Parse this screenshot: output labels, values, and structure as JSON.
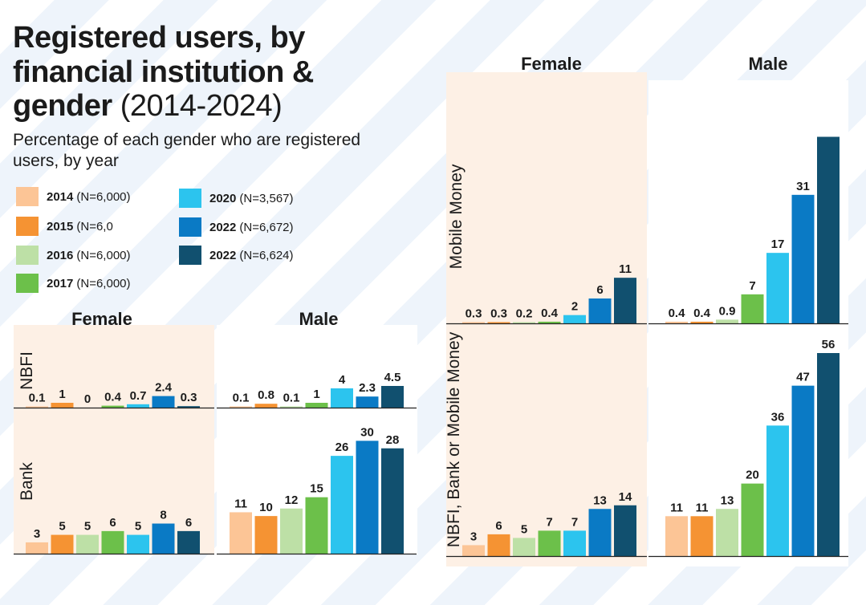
{
  "title": {
    "main": "Registered users, by financial institution &",
    "gender_word": "gender",
    "years": "(2014-2024)"
  },
  "subtitle": "Percentage of each gender who are registered users, by year",
  "legend": [
    {
      "year": "2014",
      "n": "(N=6,000)",
      "color": "#fcc596"
    },
    {
      "year": "2015",
      "n": "(N=6,0",
      "color": "#f59333"
    },
    {
      "year": "2016",
      "n": "(N=6,000)",
      "color": "#bde0a6"
    },
    {
      "year": "2017",
      "n": "(N=6,000)",
      "color": "#6cc04a"
    },
    {
      "year": "2020",
      "n": "(N=3,567)",
      "color": "#2cc4ee"
    },
    {
      "year": "2022",
      "n": "(N=6,672)",
      "color": "#0a7ac5"
    },
    {
      "year": "2022",
      "n": "(N=6,624)",
      "color": "#11506f"
    }
  ],
  "headers": {
    "female": "Female",
    "male": "Male"
  },
  "row_labels": {
    "nbfi": "NBFI",
    "bank": "Bank",
    "mobile_money": "Mobile Money",
    "any": "NBFI, Bank or Mobile Money"
  },
  "colors": {
    "female_panel": "#fdf0e5",
    "male_panel": "#ffffff",
    "axis": "#222222",
    "text": "#1b1b1b"
  },
  "chart_data": [
    {
      "type": "bar",
      "institution": "NBFI",
      "gender": "Female",
      "categories": [
        "2014",
        "2015",
        "2016",
        "2017",
        "2020",
        "2022",
        "2022"
      ],
      "values": [
        0.1,
        1,
        0,
        0.4,
        0.7,
        2.4,
        0.3
      ],
      "labels": [
        "0.1",
        "1",
        "0",
        "0.4",
        "0.7",
        "2.4",
        "0.3"
      ]
    },
    {
      "type": "bar",
      "institution": "NBFI",
      "gender": "Male",
      "categories": [
        "2014",
        "2015",
        "2016",
        "2017",
        "2020",
        "2022",
        "2022"
      ],
      "values": [
        0.1,
        0.8,
        0.1,
        1,
        4,
        2.3,
        4.5
      ],
      "labels": [
        "0.1",
        "0.8",
        "0.1",
        "1",
        "4",
        "2.3",
        "4.5"
      ]
    },
    {
      "type": "bar",
      "institution": "Bank",
      "gender": "Female",
      "categories": [
        "2014",
        "2015",
        "2016",
        "2017",
        "2020",
        "2022",
        "2022"
      ],
      "values": [
        3,
        5,
        5,
        6,
        5,
        8,
        6
      ],
      "labels": [
        "3",
        "5",
        "5",
        "6",
        "5",
        "8",
        "6"
      ]
    },
    {
      "type": "bar",
      "institution": "Bank",
      "gender": "Male",
      "categories": [
        "2014",
        "2015",
        "2016",
        "2017",
        "2020",
        "2022",
        "2022"
      ],
      "values": [
        11,
        10,
        12,
        15,
        26,
        30,
        28
      ],
      "labels": [
        "11",
        "10",
        "12",
        "15",
        "26",
        "30",
        "28"
      ]
    },
    {
      "type": "bar",
      "institution": "Mobile Money",
      "gender": "Female",
      "categories": [
        "2014",
        "2015",
        "2016",
        "2017",
        "2020",
        "2022",
        "2022"
      ],
      "values": [
        0.3,
        0.3,
        0.2,
        0.4,
        2,
        6,
        11
      ],
      "labels": [
        "0.3",
        "0.3",
        "0.2",
        "0.4",
        "2",
        "6",
        "11"
      ]
    },
    {
      "type": "bar",
      "institution": "Mobile Money",
      "gender": "Male",
      "categories": [
        "2014",
        "2015",
        "2016",
        "2017",
        "2020",
        "2022",
        "2022"
      ],
      "values": [
        0.4,
        0.4,
        0.9,
        7,
        17,
        31,
        45
      ],
      "labels": [
        "0.4",
        "0.4",
        "0.9",
        "7",
        "17",
        "31",
        ""
      ]
    },
    {
      "type": "bar",
      "institution": "NBFI, Bank or Mobile Money",
      "gender": "Female",
      "categories": [
        "2014",
        "2015",
        "2016",
        "2017",
        "2020",
        "2022",
        "2022"
      ],
      "values": [
        3,
        6,
        5,
        7,
        7,
        13,
        14
      ],
      "labels": [
        "3",
        "6",
        "5",
        "7",
        "7",
        "13",
        "14"
      ]
    },
    {
      "type": "bar",
      "institution": "NBFI, Bank or Mobile Money",
      "gender": "Male",
      "categories": [
        "2014",
        "2015",
        "2016",
        "2017",
        "2020",
        "2022",
        "2022"
      ],
      "values": [
        11,
        11,
        13,
        20,
        36,
        47,
        56
      ],
      "labels": [
        "11",
        "11",
        "13",
        "20",
        "36",
        "47",
        "56"
      ]
    }
  ]
}
